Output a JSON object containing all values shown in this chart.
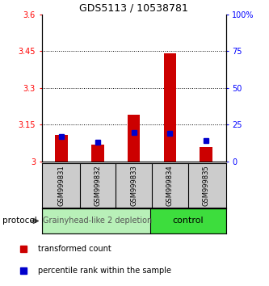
{
  "title": "GDS5113 / 10538781",
  "samples": [
    "GSM999831",
    "GSM999832",
    "GSM999833",
    "GSM999834",
    "GSM999835"
  ],
  "red_values": [
    3.11,
    3.07,
    3.19,
    3.44,
    3.06
  ],
  "blue_values_pct": [
    17,
    13,
    20,
    19,
    14
  ],
  "ylim_left": [
    3.0,
    3.6
  ],
  "ylim_right": [
    0,
    100
  ],
  "yticks_left": [
    3.0,
    3.15,
    3.3,
    3.45,
    3.6
  ],
  "yticks_right": [
    0,
    25,
    50,
    75,
    100
  ],
  "ytick_labels_left": [
    "3",
    "3.15",
    "3.3",
    "3.45",
    "3.6"
  ],
  "ytick_labels_right": [
    "0",
    "25",
    "50",
    "75",
    "100%"
  ],
  "dotted_lines": [
    3.15,
    3.3,
    3.45
  ],
  "group1_indices": [
    0,
    1,
    2
  ],
  "group2_indices": [
    3,
    4
  ],
  "group1_label": "Grainyhead-like 2 depletion",
  "group2_label": "control",
  "group1_bg": "#b8f0b8",
  "group2_bg": "#3ddd3d",
  "protocol_label": "protocol",
  "legend_red": "transformed count",
  "legend_blue": "percentile rank within the sample",
  "bar_width": 0.35,
  "red_color": "#cc0000",
  "blue_color": "#0000cc",
  "bar_base": 3.0,
  "title_fontsize": 9,
  "tick_fontsize": 7,
  "sample_fontsize": 6,
  "group_fontsize": 7,
  "legend_fontsize": 7
}
